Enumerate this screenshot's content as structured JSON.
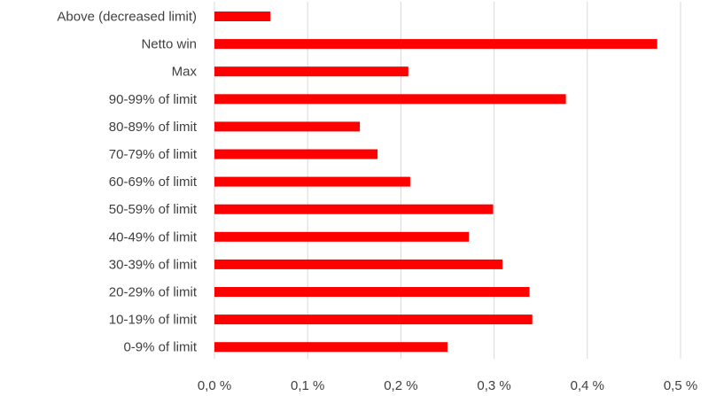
{
  "chart_data": {
    "type": "bar",
    "orientation": "horizontal",
    "title": "",
    "xlabel": "",
    "ylabel": "",
    "xlim": [
      0,
      0.5
    ],
    "x_ticks": [
      0.0,
      0.1,
      0.2,
      0.3,
      0.4,
      0.5
    ],
    "x_tick_labels": [
      "0,0 %",
      "0,1 %",
      "0,2 %",
      "0,3 %",
      "0,4 %",
      "0,5 %"
    ],
    "grid": "vertical",
    "legend": "none",
    "bar_color": "#ff0000",
    "categories": [
      "Above (decreased limit)",
      "Netto win",
      "Max",
      "90-99% of limit",
      "80-89% of limit",
      "70-79% of limit",
      "60-69% of limit",
      "50-59% of limit",
      "40-49% of limit",
      "30-39% of limit",
      "20-29% of limit",
      "10-19% of limit",
      "0-9% of limit"
    ],
    "values": [
      0.06,
      0.475,
      0.208,
      0.377,
      0.156,
      0.175,
      0.21,
      0.299,
      0.273,
      0.309,
      0.338,
      0.341,
      0.25
    ]
  }
}
